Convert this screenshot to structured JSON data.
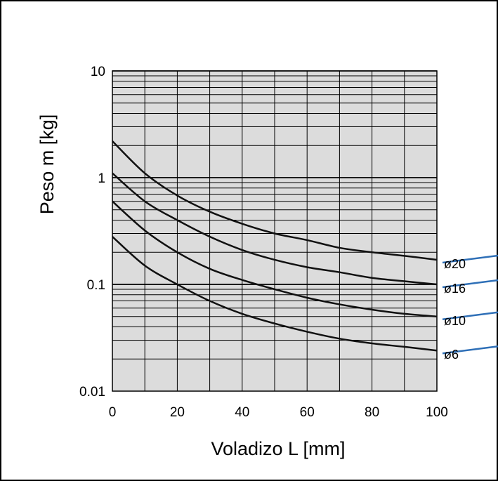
{
  "chart_data": {
    "type": "line",
    "xlabel": "Voladizo L [mm]",
    "ylabel": "Peso m [kg]",
    "xlim": [
      0,
      100
    ],
    "ylim": [
      0.01,
      10
    ],
    "yscale": "log",
    "grid": true,
    "x_ticks": [
      "0",
      "20",
      "40",
      "60",
      "80",
      "100"
    ],
    "y_ticks": [
      "0.01",
      "0.1",
      "1",
      "10"
    ],
    "series": [
      {
        "name": "ø20",
        "color": "#111111",
        "x": [
          0,
          10,
          20,
          30,
          40,
          50,
          60,
          70,
          80,
          90,
          100
        ],
        "y": [
          2.2,
          1.1,
          0.68,
          0.48,
          0.37,
          0.3,
          0.26,
          0.22,
          0.2,
          0.185,
          0.17
        ]
      },
      {
        "name": "ø16",
        "color": "#111111",
        "x": [
          0,
          10,
          20,
          30,
          40,
          50,
          60,
          70,
          80,
          90,
          100
        ],
        "y": [
          1.1,
          0.6,
          0.4,
          0.28,
          0.21,
          0.17,
          0.145,
          0.13,
          0.115,
          0.107,
          0.1
        ]
      },
      {
        "name": "ø10",
        "color": "#111111",
        "x": [
          0,
          10,
          20,
          30,
          40,
          50,
          60,
          70,
          80,
          90,
          100
        ],
        "y": [
          0.6,
          0.32,
          0.2,
          0.14,
          0.11,
          0.09,
          0.075,
          0.065,
          0.058,
          0.053,
          0.05
        ]
      },
      {
        "name": "ø6",
        "color": "#111111",
        "x": [
          0,
          10,
          20,
          30,
          40,
          50,
          60,
          70,
          80,
          90,
          100
        ],
        "y": [
          0.28,
          0.15,
          0.1,
          0.07,
          0.053,
          0.043,
          0.036,
          0.031,
          0.028,
          0.026,
          0.024
        ]
      }
    ],
    "colors": {
      "plot_background": "#dcdcdc",
      "grid": "#000000",
      "leader_lines": "#2e6fb7"
    }
  }
}
